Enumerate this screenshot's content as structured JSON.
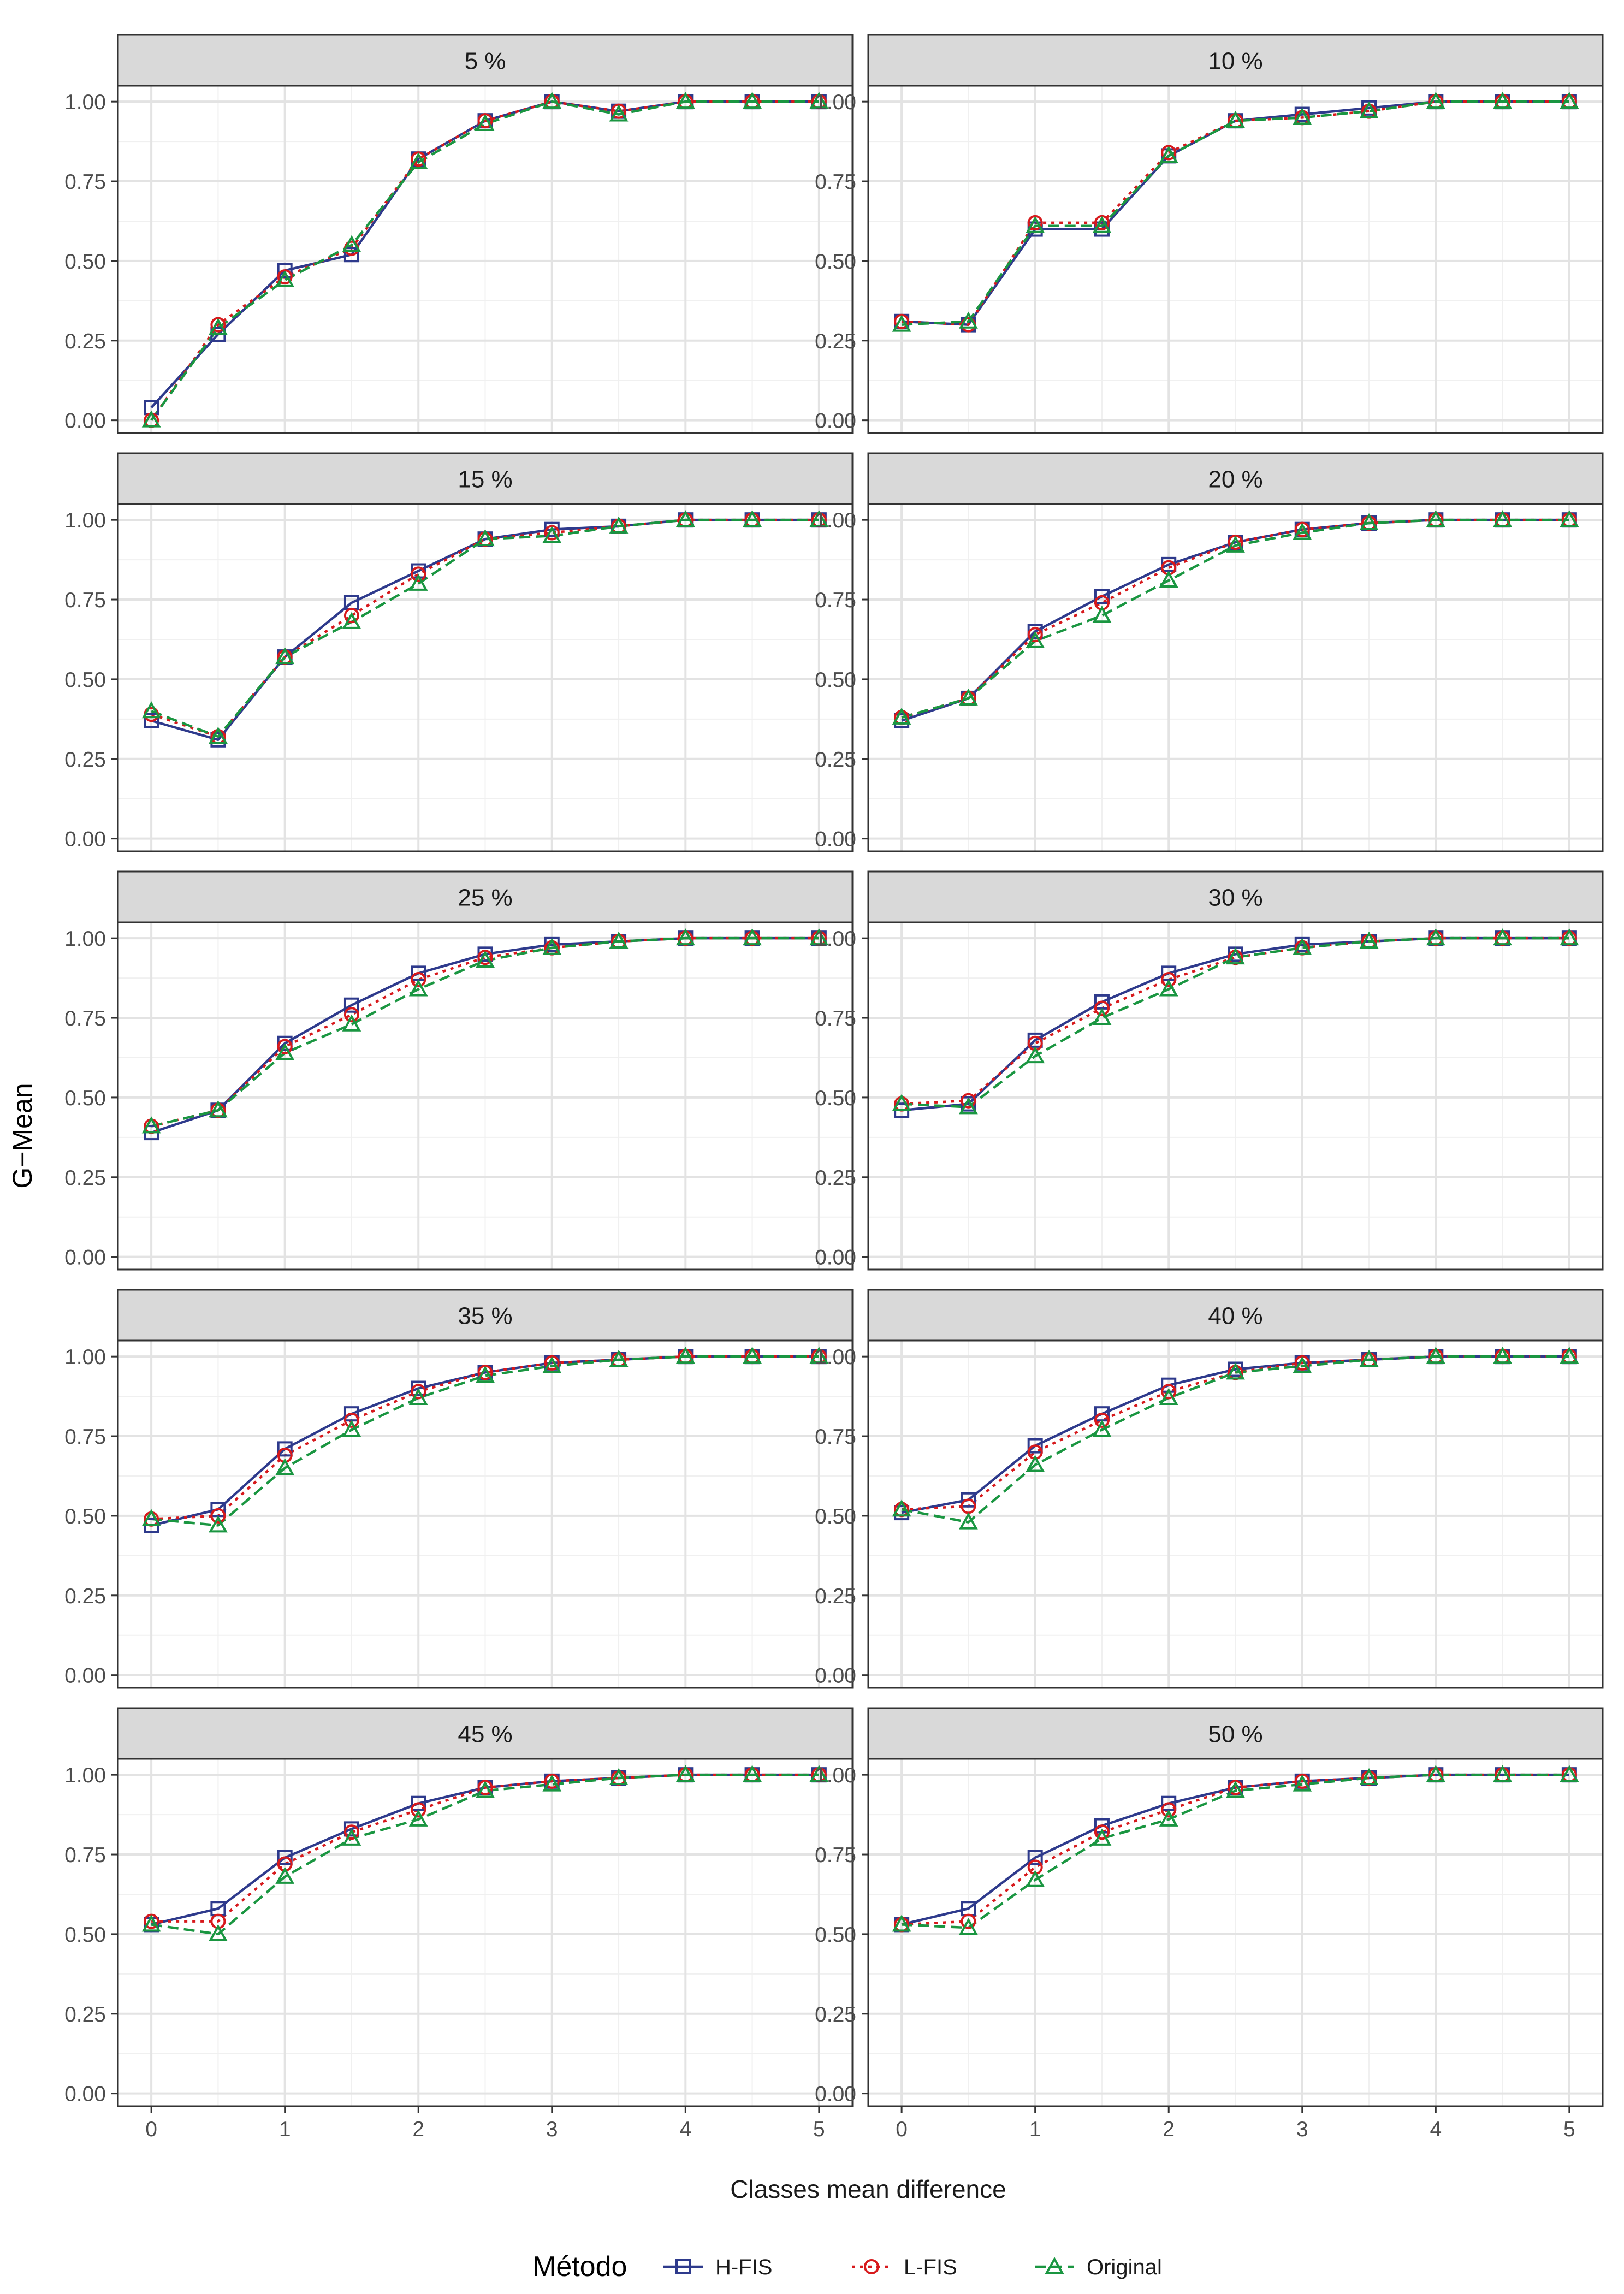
{
  "chart_data": {
    "type": "line",
    "ylabel": "G−Mean",
    "xlabel": "Classes mean difference",
    "x": [
      0,
      0.5,
      1,
      1.5,
      2,
      2.5,
      3,
      3.5,
      4,
      4.5,
      5
    ],
    "x_ticks": [
      0,
      1,
      2,
      3,
      4,
      5
    ],
    "x_tick_labels": [
      "0",
      "1",
      "2",
      "3",
      "4",
      "5"
    ],
    "xlim": [
      -0.25,
      5.25
    ],
    "y_ticks": [
      0,
      0.25,
      0.5,
      0.75,
      1
    ],
    "y_tick_labels": [
      "0.00",
      "0.25",
      "0.50",
      "0.75",
      "1.00"
    ],
    "ylim": [
      -0.04,
      1.05
    ],
    "grid": true,
    "legend": {
      "title": "Método",
      "position": "bottom",
      "entries": [
        "H-FIS",
        "L-FIS",
        "Original"
      ]
    },
    "series_styles": [
      {
        "name": "H-FIS",
        "color": "#2E3A8C",
        "dash": "solid",
        "marker": "square"
      },
      {
        "name": "L-FIS",
        "color": "#D7191C",
        "dash": "dotted",
        "marker": "circle"
      },
      {
        "name": "Original",
        "color": "#1A9641",
        "dash": "dashed",
        "marker": "triangle"
      }
    ],
    "panels": [
      {
        "title": "5 %",
        "series": [
          {
            "name": "H-FIS",
            "values": [
              0.04,
              0.27,
              0.47,
              0.52,
              0.82,
              0.94,
              1.0,
              0.97,
              1.0,
              1.0,
              1.0
            ]
          },
          {
            "name": "L-FIS",
            "values": [
              0.0,
              0.3,
              0.45,
              0.54,
              0.82,
              0.94,
              1.0,
              0.97,
              1.0,
              1.0,
              1.0
            ]
          },
          {
            "name": "Original",
            "values": [
              0.0,
              0.29,
              0.44,
              0.55,
              0.81,
              0.93,
              1.0,
              0.96,
              1.0,
              1.0,
              1.0
            ]
          }
        ]
      },
      {
        "title": "10 %",
        "series": [
          {
            "name": "H-FIS",
            "values": [
              0.31,
              0.3,
              0.6,
              0.6,
              0.83,
              0.94,
              0.96,
              0.98,
              1.0,
              1.0,
              1.0
            ]
          },
          {
            "name": "L-FIS",
            "values": [
              0.31,
              0.3,
              0.62,
              0.62,
              0.84,
              0.94,
              0.95,
              0.97,
              1.0,
              1.0,
              1.0
            ]
          },
          {
            "name": "Original",
            "values": [
              0.3,
              0.31,
              0.61,
              0.61,
              0.83,
              0.94,
              0.95,
              0.97,
              1.0,
              1.0,
              1.0
            ]
          }
        ]
      },
      {
        "title": "15 %",
        "series": [
          {
            "name": "H-FIS",
            "values": [
              0.37,
              0.31,
              0.57,
              0.74,
              0.84,
              0.94,
              0.97,
              0.98,
              1.0,
              1.0,
              1.0
            ]
          },
          {
            "name": "L-FIS",
            "values": [
              0.39,
              0.32,
              0.57,
              0.7,
              0.83,
              0.94,
              0.96,
              0.98,
              1.0,
              1.0,
              1.0
            ]
          },
          {
            "name": "Original",
            "values": [
              0.4,
              0.32,
              0.57,
              0.68,
              0.8,
              0.94,
              0.95,
              0.98,
              1.0,
              1.0,
              1.0
            ]
          }
        ]
      },
      {
        "title": "20 %",
        "series": [
          {
            "name": "H-FIS",
            "values": [
              0.37,
              0.44,
              0.65,
              0.76,
              0.86,
              0.93,
              0.97,
              0.99,
              1.0,
              1.0,
              1.0
            ]
          },
          {
            "name": "L-FIS",
            "values": [
              0.38,
              0.44,
              0.64,
              0.74,
              0.85,
              0.93,
              0.97,
              0.99,
              1.0,
              1.0,
              1.0
            ]
          },
          {
            "name": "Original",
            "values": [
              0.38,
              0.44,
              0.62,
              0.7,
              0.81,
              0.92,
              0.96,
              0.99,
              1.0,
              1.0,
              1.0
            ]
          }
        ]
      },
      {
        "title": "25 %",
        "series": [
          {
            "name": "H-FIS",
            "values": [
              0.39,
              0.46,
              0.67,
              0.79,
              0.89,
              0.95,
              0.98,
              0.99,
              1.0,
              1.0,
              1.0
            ]
          },
          {
            "name": "L-FIS",
            "values": [
              0.41,
              0.46,
              0.66,
              0.76,
              0.87,
              0.94,
              0.97,
              0.99,
              1.0,
              1.0,
              1.0
            ]
          },
          {
            "name": "Original",
            "values": [
              0.41,
              0.46,
              0.64,
              0.73,
              0.84,
              0.93,
              0.97,
              0.99,
              1.0,
              1.0,
              1.0
            ]
          }
        ]
      },
      {
        "title": "30 %",
        "series": [
          {
            "name": "H-FIS",
            "values": [
              0.46,
              0.48,
              0.68,
              0.8,
              0.89,
              0.95,
              0.98,
              0.99,
              1.0,
              1.0,
              1.0
            ]
          },
          {
            "name": "L-FIS",
            "values": [
              0.48,
              0.49,
              0.67,
              0.78,
              0.87,
              0.94,
              0.97,
              0.99,
              1.0,
              1.0,
              1.0
            ]
          },
          {
            "name": "Original",
            "values": [
              0.48,
              0.47,
              0.63,
              0.75,
              0.84,
              0.94,
              0.97,
              0.99,
              1.0,
              1.0,
              1.0
            ]
          }
        ]
      },
      {
        "title": "35 %",
        "series": [
          {
            "name": "H-FIS",
            "values": [
              0.47,
              0.52,
              0.71,
              0.82,
              0.9,
              0.95,
              0.98,
              0.99,
              1.0,
              1.0,
              1.0
            ]
          },
          {
            "name": "L-FIS",
            "values": [
              0.49,
              0.5,
              0.69,
              0.8,
              0.89,
              0.95,
              0.98,
              0.99,
              1.0,
              1.0,
              1.0
            ]
          },
          {
            "name": "Original",
            "values": [
              0.49,
              0.47,
              0.65,
              0.77,
              0.87,
              0.94,
              0.97,
              0.99,
              1.0,
              1.0,
              1.0
            ]
          }
        ]
      },
      {
        "title": "40 %",
        "series": [
          {
            "name": "H-FIS",
            "values": [
              0.51,
              0.55,
              0.72,
              0.82,
              0.91,
              0.96,
              0.98,
              0.99,
              1.0,
              1.0,
              1.0
            ]
          },
          {
            "name": "L-FIS",
            "values": [
              0.52,
              0.53,
              0.7,
              0.8,
              0.89,
              0.95,
              0.98,
              0.99,
              1.0,
              1.0,
              1.0
            ]
          },
          {
            "name": "Original",
            "values": [
              0.52,
              0.48,
              0.66,
              0.77,
              0.87,
              0.95,
              0.97,
              0.99,
              1.0,
              1.0,
              1.0
            ]
          }
        ]
      },
      {
        "title": "45 %",
        "series": [
          {
            "name": "H-FIS",
            "values": [
              0.53,
              0.58,
              0.74,
              0.83,
              0.91,
              0.96,
              0.98,
              0.99,
              1.0,
              1.0,
              1.0
            ]
          },
          {
            "name": "L-FIS",
            "values": [
              0.54,
              0.54,
              0.72,
              0.82,
              0.89,
              0.96,
              0.98,
              0.99,
              1.0,
              1.0,
              1.0
            ]
          },
          {
            "name": "Original",
            "values": [
              0.53,
              0.5,
              0.68,
              0.8,
              0.86,
              0.95,
              0.97,
              0.99,
              1.0,
              1.0,
              1.0
            ]
          }
        ]
      },
      {
        "title": "50 %",
        "series": [
          {
            "name": "H-FIS",
            "values": [
              0.53,
              0.58,
              0.74,
              0.84,
              0.91,
              0.96,
              0.98,
              0.99,
              1.0,
              1.0,
              1.0
            ]
          },
          {
            "name": "L-FIS",
            "values": [
              0.53,
              0.54,
              0.71,
              0.82,
              0.89,
              0.96,
              0.98,
              0.99,
              1.0,
              1.0,
              1.0
            ]
          },
          {
            "name": "Original",
            "values": [
              0.53,
              0.52,
              0.67,
              0.8,
              0.86,
              0.95,
              0.97,
              0.99,
              1.0,
              1.0,
              1.0
            ]
          }
        ]
      }
    ]
  }
}
